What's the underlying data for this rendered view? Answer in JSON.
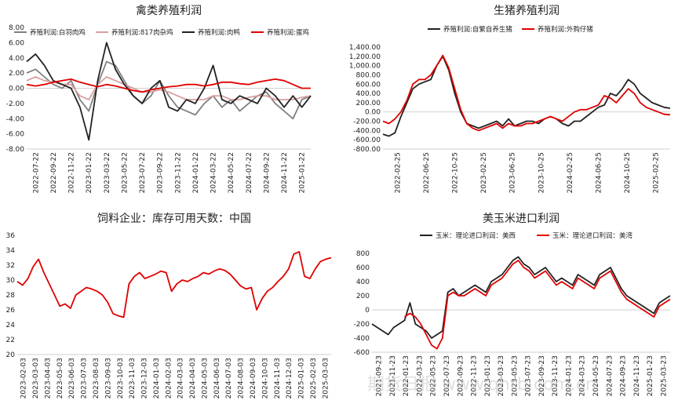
{
  "watermark": "期货日报 www.qhrb.com.cn",
  "chart_data": [
    {
      "type": "line",
      "title": "禽类养殖利润",
      "x_ticks": [
        "2022-07-22",
        "2022-09-22",
        "2022-11-22",
        "2023-01-22",
        "2023-03-22",
        "2023-05-22",
        "2023-07-22",
        "2023-09-22",
        "2023-11-22",
        "2024-01-22",
        "2024-03-22",
        "2024-05-22",
        "2024-07-22",
        "2024-09-22",
        "2024-11-22",
        "2025-01-22"
      ],
      "ylim": [
        -8,
        8
      ],
      "y_ticks": [
        "8.00",
        "6.00",
        "4.00",
        "2.00",
        "0.00",
        "-2.00",
        "-4.00",
        "-6.00",
        "-8.00"
      ],
      "legend_position": "top",
      "series": [
        {
          "name": "养殖利润:白羽肉鸡",
          "color": "#808080",
          "values": [
            2.0,
            2.5,
            1.5,
            0.5,
            0.0,
            1.0,
            -1.5,
            -3.0,
            0.5,
            3.5,
            3.0,
            1.0,
            -1.0,
            -2.0,
            -1.0,
            1.0,
            -1.0,
            -2.5,
            -3.0,
            -3.5,
            -2.0,
            -1.0,
            -2.5,
            -1.5,
            -3.0,
            -2.0,
            -1.0,
            -0.5,
            -2.0,
            -3.0,
            -4.0,
            -1.5,
            -1.0
          ]
        },
        {
          "name": "养殖利润:817肉杂鸡",
          "color": "#d9a0a0",
          "values": [
            1.0,
            1.5,
            1.0,
            0.8,
            0.5,
            0.5,
            -1.0,
            -1.5,
            0.5,
            1.5,
            1.0,
            0.5,
            0.0,
            -0.5,
            -0.5,
            -0.2,
            -0.5,
            -1.0,
            -1.5,
            -1.5,
            -1.5,
            -1.0,
            -1.0,
            -1.5,
            -1.5,
            -1.2,
            -1.0,
            -1.0,
            -1.5,
            -1.5,
            -1.5,
            -1.2,
            -1.0
          ]
        },
        {
          "name": "养殖利润:肉鸭",
          "color": "#222222",
          "values": [
            3.5,
            4.5,
            3.0,
            1.0,
            0.5,
            0.0,
            -2.5,
            -6.8,
            1.0,
            6.0,
            2.5,
            0.5,
            -1.0,
            -2.0,
            0.0,
            1.0,
            -2.5,
            -3.0,
            -1.5,
            -2.0,
            0.0,
            3.0,
            -1.5,
            -2.0,
            -1.0,
            -1.5,
            -2.0,
            0.0,
            -1.0,
            -2.5,
            -1.0,
            -2.5,
            -1.0
          ]
        },
        {
          "name": "养殖利润:蛋鸡",
          "color": "#e00000",
          "values": [
            0.5,
            0.3,
            0.5,
            0.8,
            1.0,
            1.2,
            0.8,
            0.5,
            0.2,
            0.5,
            0.3,
            0.0,
            -0.3,
            -0.5,
            -0.2,
            0.0,
            0.2,
            0.3,
            0.5,
            0.5,
            0.3,
            0.5,
            0.8,
            0.8,
            0.6,
            0.5,
            0.8,
            1.0,
            1.2,
            1.0,
            0.5,
            0.0,
            0.0
          ]
        }
      ]
    },
    {
      "type": "line",
      "title": "生猪养殖利润",
      "x_ticks": [
        "2022-02-25",
        "2022-06-25",
        "2022-10-25",
        "2023-02-25",
        "2023-06-25",
        "2023-10-25",
        "2024-02-25",
        "2024-06-25",
        "2024-10-25",
        "2025-02-25"
      ],
      "ylim": [
        -800,
        1400
      ],
      "y_ticks": [
        "1,400.00",
        "1,200.00",
        "1,000.00",
        "800.00",
        "600.00",
        "400.00",
        "200.00",
        "0.00",
        "-200.00",
        "-400.00",
        "-600.00",
        "-800.00"
      ],
      "legend_position": "top",
      "series": [
        {
          "name": "养殖利润:自繁自养生猪",
          "color": "#222222",
          "values": [
            -480,
            -520,
            -450,
            -100,
            200,
            500,
            600,
            650,
            700,
            1000,
            1200,
            900,
            400,
            0,
            -250,
            -300,
            -350,
            -300,
            -250,
            -200,
            -300,
            -150,
            -300,
            -250,
            -200,
            -200,
            -250,
            -150,
            -100,
            -150,
            -250,
            -300,
            -200,
            -200,
            -100,
            0,
            100,
            150,
            400,
            350,
            500,
            700,
            600,
            400,
            300,
            200,
            150,
            100,
            80
          ]
        },
        {
          "name": "养殖利润:外购仔猪",
          "color": "#e00000",
          "values": [
            -200,
            -250,
            -150,
            0,
            250,
            600,
            700,
            700,
            800,
            1000,
            1220,
            950,
            500,
            50,
            -250,
            -350,
            -400,
            -350,
            -300,
            -250,
            -350,
            -250,
            -300,
            -300,
            -250,
            -250,
            -200,
            -150,
            -100,
            -150,
            -200,
            -100,
            0,
            50,
            50,
            100,
            150,
            350,
            300,
            200,
            350,
            500,
            400,
            200,
            100,
            50,
            0,
            -50,
            -60
          ]
        }
      ]
    },
    {
      "type": "line",
      "title": "饲料企业：库存可用天数：中国",
      "x_ticks": [
        "2023-02-03",
        "2023-03-03",
        "2023-04-03",
        "2023-05-03",
        "2023-06-03",
        "2023-07-03",
        "2023-08-03",
        "2023-09-03",
        "2023-10-03",
        "2023-11-03",
        "2023-12-03",
        "2024-01-03",
        "2024-02-03",
        "2024-03-03",
        "2024-04-03",
        "2024-05-03",
        "2024-06-03",
        "2024-07-03",
        "2024-08-03",
        "2024-09-03",
        "2024-10-03",
        "2024-11-03",
        "2024-12-03",
        "2025-01-03",
        "2025-02-03",
        "2025-03-03"
      ],
      "ylim": [
        20,
        36
      ],
      "y_ticks": [
        "36",
        "34",
        "32",
        "30",
        "28",
        "26",
        "24",
        "22",
        "20"
      ],
      "series": [
        {
          "name": "",
          "color": "#e00000",
          "values": [
            29.8,
            29.3,
            30.2,
            31.8,
            32.8,
            31.0,
            29.5,
            28.0,
            26.5,
            26.8,
            26.2,
            28.0,
            28.5,
            29.0,
            28.8,
            28.5,
            28.0,
            27.0,
            25.5,
            25.2,
            25.0,
            29.5,
            30.5,
            31.0,
            30.2,
            30.5,
            30.8,
            31.2,
            31.0,
            28.5,
            29.5,
            30.0,
            29.8,
            30.2,
            30.5,
            31.0,
            30.8,
            31.2,
            31.5,
            31.3,
            30.8,
            30.0,
            29.2,
            28.8,
            29.0,
            26.0,
            27.5,
            28.5,
            29.0,
            29.8,
            30.5,
            31.5,
            33.5,
            33.8,
            30.5,
            30.2,
            31.5,
            32.5,
            32.8,
            33.0
          ]
        }
      ]
    },
    {
      "type": "line",
      "title": "美玉米进口利润",
      "x_ticks": [
        "2021-09-23",
        "2021-11-23",
        "2022-01-23",
        "2022-03-23",
        "2022-05-23",
        "2022-07-23",
        "2022-09-23",
        "2022-11-23",
        "2023-01-23",
        "2023-03-23",
        "2023-05-23",
        "2023-07-23",
        "2023-09-23",
        "2023-11-23",
        "2024-01-23",
        "2024-03-23",
        "2024-05-23",
        "2024-07-23",
        "2024-09-23",
        "2024-11-23",
        "2025-01-23",
        "2025-03-23"
      ],
      "ylim": [
        -600,
        800
      ],
      "y_ticks": [
        "800",
        "600",
        "400",
        "200",
        "0",
        "-200",
        "-400",
        "-600"
      ],
      "legend_position": "top",
      "series": [
        {
          "name": "玉米：理论进口利润：美西",
          "color": "#222222",
          "values": [
            -200,
            -250,
            -300,
            -350,
            -250,
            -200,
            -150,
            100,
            -200,
            -250,
            -300,
            -400,
            -350,
            -300,
            250,
            300,
            200,
            250,
            300,
            350,
            300,
            250,
            400,
            450,
            500,
            600,
            700,
            750,
            650,
            600,
            500,
            550,
            600,
            500,
            400,
            450,
            400,
            350,
            500,
            450,
            400,
            350,
            500,
            550,
            600,
            450,
            300,
            200,
            150,
            100,
            50,
            0,
            -50,
            100,
            150,
            200
          ]
        },
        {
          "name": "玉米：理论进口利润：美湾",
          "color": "#e00000",
          "values": [
            null,
            null,
            null,
            null,
            null,
            null,
            -100,
            -50,
            -100,
            -200,
            -350,
            -500,
            -550,
            -400,
            200,
            250,
            200,
            200,
            250,
            300,
            250,
            200,
            350,
            400,
            450,
            550,
            650,
            700,
            600,
            550,
            450,
            500,
            550,
            450,
            350,
            400,
            350,
            300,
            450,
            400,
            350,
            300,
            450,
            500,
            550,
            400,
            250,
            150,
            100,
            50,
            0,
            -50,
            -100,
            50,
            100,
            150
          ]
        }
      ]
    }
  ]
}
